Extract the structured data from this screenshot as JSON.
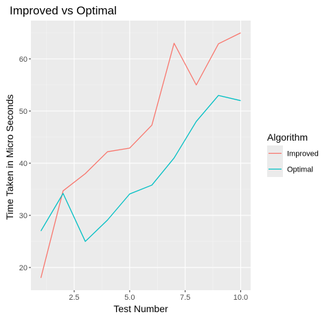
{
  "chart_data": {
    "type": "line",
    "title": "Improved vs Optimal",
    "xlabel": "Test Number",
    "ylabel": "Time Taken in Micro Seconds",
    "x": [
      1,
      2,
      3,
      4,
      5,
      6,
      7,
      8,
      9,
      10
    ],
    "xlim": [
      0.55,
      10.45
    ],
    "ylim": [
      15.65,
      67.35
    ],
    "x_ticks": [
      2.5,
      5.0,
      7.5,
      10.0
    ],
    "x_tick_labels": [
      "2.5",
      "5.0",
      "7.5",
      "10.0"
    ],
    "y_ticks": [
      20,
      30,
      40,
      50,
      60
    ],
    "y_tick_labels": [
      "20",
      "30",
      "40",
      "50",
      "60"
    ],
    "grid": true,
    "legend_title": "Algorithm",
    "legend_position": "right",
    "series": [
      {
        "name": "Improved",
        "color": "#F8766D",
        "values": [
          18,
          34.7,
          38,
          42.2,
          42.9,
          47.3,
          63,
          55,
          62.9,
          65
        ]
      },
      {
        "name": "Optimal",
        "color": "#00BFC4",
        "values": [
          27,
          34.2,
          25,
          29.1,
          34.1,
          35.8,
          41,
          48,
          53,
          52
        ]
      }
    ]
  }
}
